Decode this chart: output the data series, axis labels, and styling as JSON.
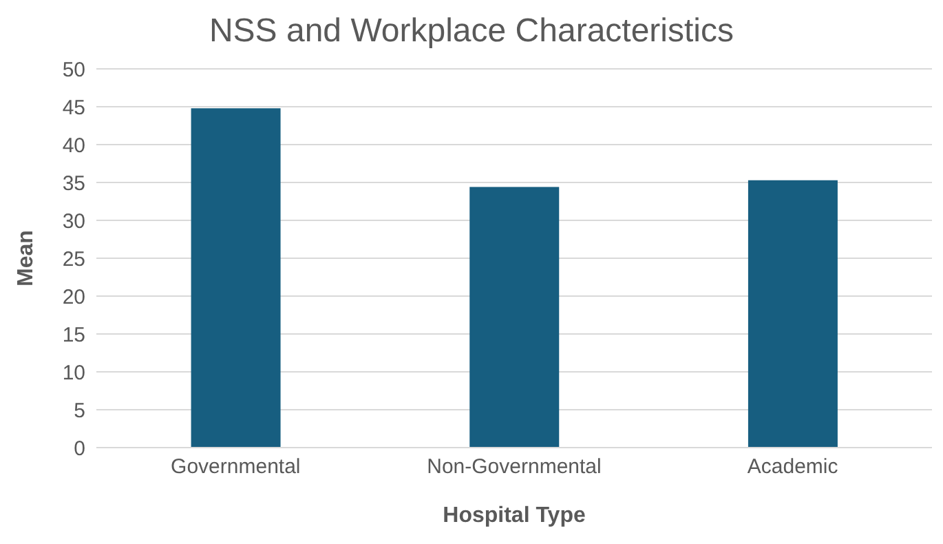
{
  "chart_data": {
    "type": "bar",
    "title": "NSS and Workplace Characteristics",
    "xlabel": "Hospital Type",
    "ylabel": "Mean",
    "categories": [
      "Governmental",
      "Non-Governmental",
      "Academic"
    ],
    "series": [
      {
        "color": "#175e80",
        "values": [
          44.8,
          34.4,
          35.3
        ]
      }
    ],
    "ylim": [
      0,
      50
    ],
    "yticks": [
      0,
      5,
      10,
      15,
      20,
      25,
      30,
      35,
      40,
      45,
      50
    ],
    "grid": "y",
    "legend": false
  }
}
